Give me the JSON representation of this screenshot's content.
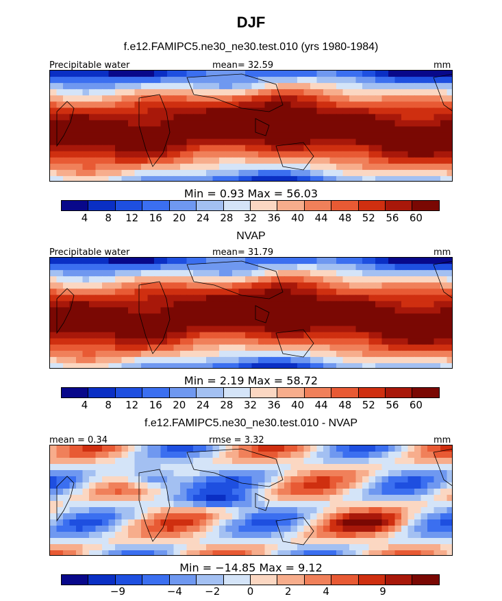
{
  "title": "DJF",
  "colors": {
    "diverging": [
      "#08088a",
      "#0a2fc4",
      "#1e4fe0",
      "#3b6ff0",
      "#6f98f0",
      "#a3c0f2",
      "#d4e4f8",
      "#fbd7c2",
      "#f7ad8c",
      "#f0805a",
      "#e85a34",
      "#cf2f10",
      "#a8180a",
      "#7a0803"
    ]
  },
  "panels": [
    {
      "title": "f.e12.FAMIPC5.ne30_ne30.test.010 (yrs 1980-1984)",
      "left_label": "Precipitable water",
      "center_label": "mean=   32.59",
      "units": "mm",
      "stats_label": "Min =    0.93 Max =   56.03",
      "ticks": [
        "4",
        "8",
        "12",
        "16",
        "20",
        "24",
        "28",
        "32",
        "36",
        "40",
        "44",
        "48",
        "52",
        "56",
        "60"
      ]
    },
    {
      "title": "NVAP",
      "left_label": "Precipitable water",
      "center_label": "mean=   31.79",
      "units": "mm",
      "stats_label": "Min =    2.19 Max =   58.72",
      "ticks": [
        "4",
        "8",
        "12",
        "16",
        "20",
        "24",
        "28",
        "32",
        "36",
        "40",
        "44",
        "48",
        "52",
        "56",
        "60"
      ]
    },
    {
      "title": "f.e12.FAMIPC5.ne30_ne30.test.010 - NVAP",
      "left_label": "mean =    0.34",
      "center_label": "rmse =    3.32",
      "units": "mm",
      "stats_label": "Min = −14.85 Max =    9.12",
      "ticks": [
        "−9",
        "−4",
        "−2",
        "0",
        "2",
        "4",
        "9"
      ]
    }
  ],
  "chart_data": [
    {
      "type": "heatmap",
      "title": "f.e12.FAMIPC5.ne30_ne30.test.010 (yrs 1980-1984)",
      "variable": "Precipitable water",
      "units": "mm",
      "mean": 32.59,
      "min": 0.93,
      "max": 56.03,
      "color_levels": [
        4,
        8,
        12,
        16,
        20,
        24,
        28,
        32,
        36,
        40,
        44,
        48,
        52,
        56,
        60
      ]
    },
    {
      "type": "heatmap",
      "title": "NVAP",
      "variable": "Precipitable water",
      "units": "mm",
      "mean": 31.79,
      "min": 2.19,
      "max": 58.72,
      "color_levels": [
        4,
        8,
        12,
        16,
        20,
        24,
        28,
        32,
        36,
        40,
        44,
        48,
        52,
        56,
        60
      ]
    },
    {
      "type": "heatmap",
      "title": "f.e12.FAMIPC5.ne30_ne30.test.010 - NVAP",
      "units": "mm",
      "mean": 0.34,
      "rmse": 3.32,
      "min": -14.85,
      "max": 9.12,
      "color_levels": [
        -9,
        -4,
        -2,
        0,
        2,
        4,
        9
      ]
    }
  ]
}
